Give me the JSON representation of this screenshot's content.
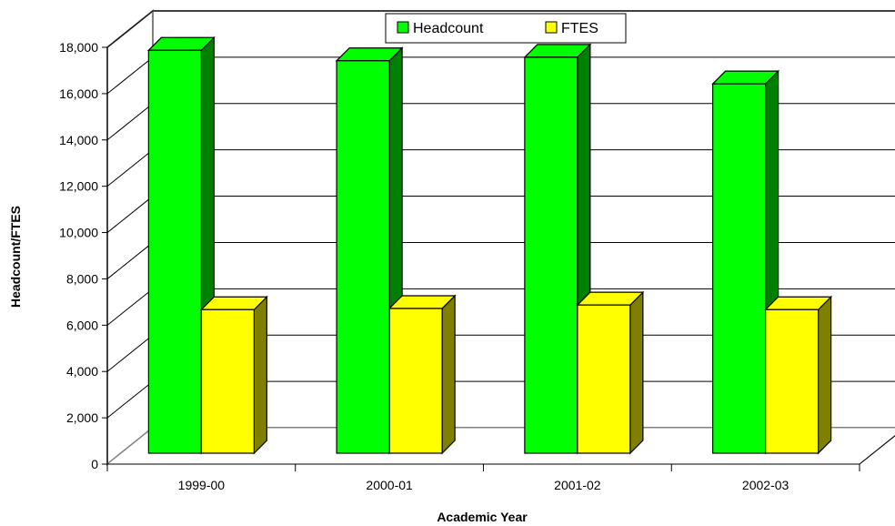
{
  "chart_data": {
    "type": "bar",
    "title": "",
    "xlabel": "Academic Year",
    "ylabel": "Headcount/FTES",
    "categories": [
      "1999-00",
      "2000-01",
      "2001-02",
      "2002-03"
    ],
    "series": [
      {
        "name": "Headcount",
        "values": [
          17400,
          16950,
          17100,
          15950
        ],
        "color": "#00ff00",
        "side_color": "#008000"
      },
      {
        "name": "FTES",
        "values": [
          6200,
          6250,
          6400,
          6200
        ],
        "color": "#ffff00",
        "side_color": "#808000"
      }
    ],
    "ylim": [
      0,
      18000
    ],
    "yticks": [
      "0",
      "2,000",
      "4,000",
      "6,000",
      "8,000",
      "10,000",
      "12,000",
      "14,000",
      "16,000",
      "18,000"
    ],
    "grid": true,
    "legend_position": "top-center",
    "style": "3d-column"
  }
}
